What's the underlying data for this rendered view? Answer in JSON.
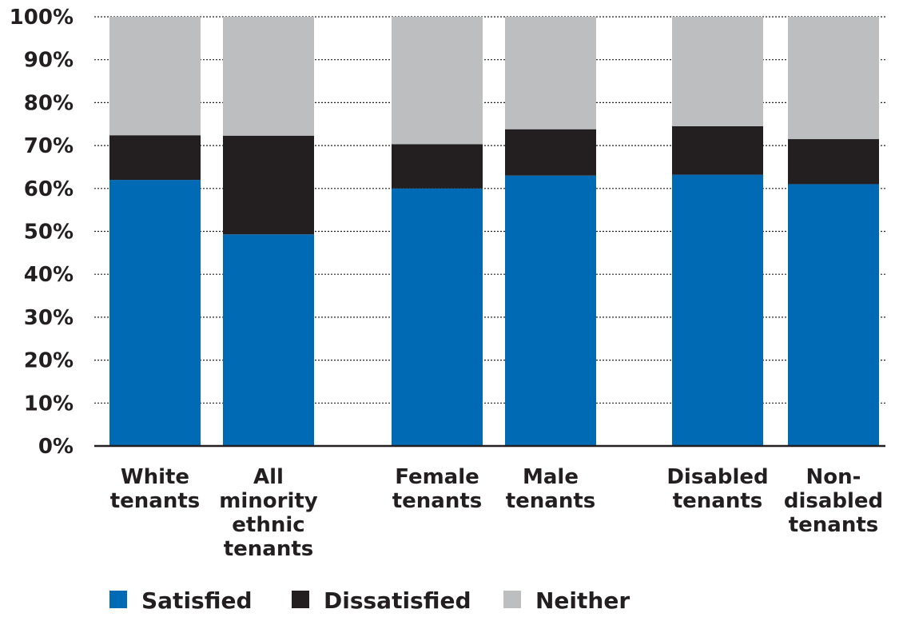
{
  "chart_data": {
    "type": "bar",
    "stacked": true,
    "categories": [
      "White tenants",
      "All minority ethnic tenants",
      "Female tenants",
      "Male tenants",
      "Disabled tenants",
      "Non-disabled tenants"
    ],
    "category_label_lines": [
      [
        "White",
        "tenants"
      ],
      [
        "All",
        "minority",
        "ethnic",
        "tenants"
      ],
      [
        "Female",
        "tenants"
      ],
      [
        "Male",
        "tenants"
      ],
      [
        "Disabled",
        "tenants"
      ],
      [
        "Non-",
        "disabled",
        "tenants"
      ]
    ],
    "groups": [
      [
        0,
        1
      ],
      [
        2,
        3
      ],
      [
        4,
        5
      ]
    ],
    "series": [
      {
        "name": "Satisfied",
        "color": "#006ab4",
        "values": [
          62,
          49.3,
          60,
          63,
          63.2,
          61
        ]
      },
      {
        "name": "Dissatisfied",
        "color": "#231f20",
        "values": [
          10.4,
          23,
          10.3,
          10.8,
          11.3,
          10.5
        ]
      },
      {
        "name": "Neither",
        "color": "#bcbec0",
        "values": [
          27.6,
          27.7,
          29.7,
          26.2,
          25.5,
          28.5
        ]
      }
    ],
    "ylim": [
      0,
      100
    ],
    "yticks": [
      "0%",
      "10%",
      "20%",
      "30%",
      "40%",
      "50%",
      "60%",
      "70%",
      "80%",
      "90%",
      "100%"
    ],
    "grid": true,
    "legend_position": "bottom-left",
    "title": "",
    "xlabel": "",
    "ylabel": ""
  }
}
